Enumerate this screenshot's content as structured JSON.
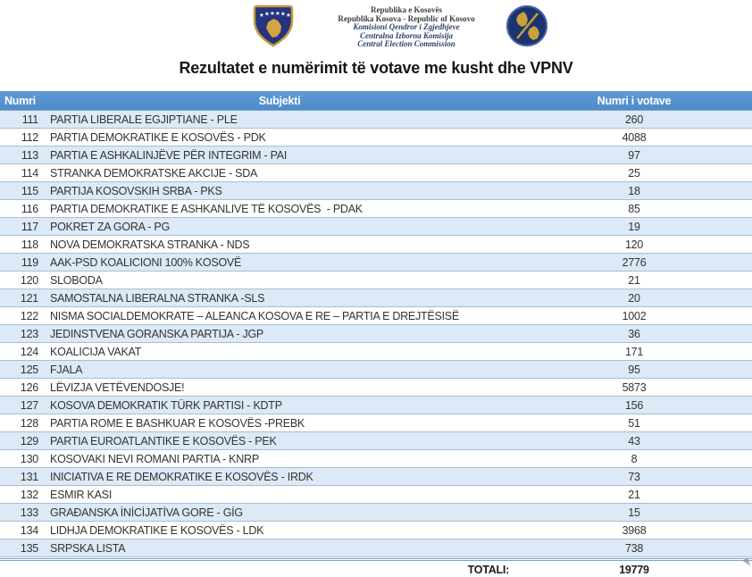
{
  "header": {
    "left_emblem": "kosovo-coat-of-arms",
    "right_emblem": "central-election-commission-seal",
    "lines": [
      {
        "text": "Republika e Kosovës",
        "style": "plain"
      },
      {
        "text": "Republika Kosova - Republic of Kosovo",
        "style": "plain"
      },
      {
        "text": "Komisioni Qendror i Zgjedhjeve",
        "style": "italic"
      },
      {
        "text": "Centralna Izborna Komisija",
        "style": "italic"
      },
      {
        "text": "Central Election Commission",
        "style": "italic"
      }
    ]
  },
  "title": "Rezultatet e numërimit të votave me kusht dhe VPNV",
  "table": {
    "columns": [
      "Numri",
      "Subjekti",
      "Numri i votave"
    ],
    "rows": [
      {
        "numri": "111",
        "subjekti": "PARTIA LIBERALE EGJIPTIANE - PLE",
        "votes": "260"
      },
      {
        "numri": "112",
        "subjekti": "PARTIA DEMOKRATIKE E KOSOVËS - PDK",
        "votes": "4088"
      },
      {
        "numri": "113",
        "subjekti": "PARTIA E ASHKALINJËVE PËR INTEGRIM - PAI",
        "votes": "97"
      },
      {
        "numri": "114",
        "subjekti": "STRANKA DEMOKRATSKE AKCIJE - SDA",
        "votes": "25"
      },
      {
        "numri": "115",
        "subjekti": "PARTIJA KOSOVSKIH SRBA - PKS",
        "votes": "18"
      },
      {
        "numri": "116",
        "subjekti": "PARTIA DEMOKRATIKE E ASHKANLIVE TË KOSOVËS  - PDAK",
        "votes": "85"
      },
      {
        "numri": "117",
        "subjekti": "POKRET ZA GORA - PG",
        "votes": "19"
      },
      {
        "numri": "118",
        "subjekti": "NOVA DEMOKRATSKA STRANKA - NDS",
        "votes": "120"
      },
      {
        "numri": "119",
        "subjekti": "AAK-PSD KOALICIONI 100% KOSOVË",
        "votes": "2776"
      },
      {
        "numri": "120",
        "subjekti": "SLOBODA",
        "votes": "21"
      },
      {
        "numri": "121",
        "subjekti": "SAMOSTALNA LIBERALNA STRANKA -SLS",
        "votes": "20"
      },
      {
        "numri": "122",
        "subjekti": "NISMA SOCIALDEMOKRATE – ALEANCA KOSOVA E RE – PARTIA E DREJTËSISË",
        "votes": "1002"
      },
      {
        "numri": "123",
        "subjekti": "JEDINSTVENA GORANSKA PARTIJA - JGP",
        "votes": "36"
      },
      {
        "numri": "124",
        "subjekti": "KOALICIJA VAKAT",
        "votes": "171"
      },
      {
        "numri": "125",
        "subjekti": "FJALA",
        "votes": "95"
      },
      {
        "numri": "126",
        "subjekti": "LËVIZJA VETËVENDOSJE!",
        "votes": "5873"
      },
      {
        "numri": "127",
        "subjekti": "KOSOVA DEMOKRATIK TÜRK PARTISI - KDTP",
        "votes": "156"
      },
      {
        "numri": "128",
        "subjekti": "PARTIA ROME E BASHKUAR E KOSOVËS -PREBK",
        "votes": "51"
      },
      {
        "numri": "129",
        "subjekti": "PARTIA EUROATLANTIKE E KOSOVËS - PEK",
        "votes": "43"
      },
      {
        "numri": "130",
        "subjekti": "KOSOVAKI NEVI ROMANI PARTIA - KNRP",
        "votes": "8"
      },
      {
        "numri": "131",
        "subjekti": "INICIATIVA E RE DEMOKRATIKE E KOSOVËS - IRDK",
        "votes": "73"
      },
      {
        "numri": "132",
        "subjekti": "ESMIR KASI",
        "votes": "21"
      },
      {
        "numri": "133",
        "subjekti": "GRAĐANSKA İNİCİJATİVA GORE - GİG",
        "votes": "15"
      },
      {
        "numri": "134",
        "subjekti": "LIDHJA DEMOKRATIKE E KOSOVËS - LDK",
        "votes": "3968"
      },
      {
        "numri": "135",
        "subjekti": "SRPSKA LISTA",
        "votes": "738"
      }
    ],
    "total_label": "TOTALI:",
    "total_value": "19779"
  },
  "colors": {
    "table_header_bg": "#5592d0",
    "row_alt_bg": "#dce9f6",
    "row_border": "#a9bed4",
    "total_border": "#7ba3cc",
    "emblem_navy": "#25357d",
    "emblem_gold": "#c9a03c"
  }
}
